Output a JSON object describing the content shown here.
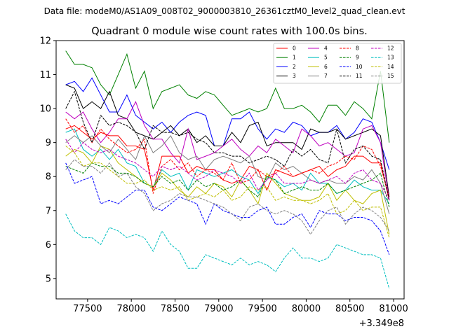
{
  "chart_data": {
    "type": "line",
    "suptitle": "Data file: modeM0/AS1A09_008T02_9000003810_26361cztM0_level2_quad_clean.evt",
    "title": "Quadrant 0 module wise count rates with 100.0s bins.",
    "xlabel": "",
    "ylabel": "",
    "x_offset_label": "+3.349e8",
    "xlim": [
      77140,
      81120
    ],
    "ylim": [
      4.4,
      12.0
    ],
    "xticks": [
      77500,
      78000,
      78500,
      79000,
      79500,
      80000,
      80500,
      81000
    ],
    "yticks": [
      5,
      6,
      7,
      8,
      9,
      10,
      11,
      12
    ],
    "x": [
      77250,
      77350,
      77450,
      77550,
      77650,
      77750,
      77850,
      77950,
      78050,
      78150,
      78250,
      78350,
      78450,
      78550,
      78650,
      78750,
      78850,
      78950,
      79050,
      79150,
      79250,
      79350,
      79450,
      79550,
      79650,
      79750,
      79850,
      79950,
      80050,
      80150,
      80250,
      80350,
      80450,
      80550,
      80650,
      80750,
      80850,
      80950
    ],
    "series": [
      {
        "name": "0",
        "color": "#ff0000",
        "dash": "solid",
        "values": [
          9.4,
          9.5,
          9.3,
          9.1,
          9.3,
          9.2,
          9.2,
          8.9,
          8.9,
          8.8,
          7.6,
          8.6,
          8.6,
          8.6,
          8.1,
          8.3,
          8.2,
          8.2,
          7.9,
          7.8,
          7.9,
          8.3,
          8.2,
          7.6,
          8.2,
          8.1,
          8.0,
          8.1,
          8.2,
          8.3,
          8.0,
          8.2,
          8.3,
          8.6,
          8.6,
          8.4,
          8.4,
          7.3
        ]
      },
      {
        "name": "1",
        "color": "#008000",
        "dash": "solid",
        "values": [
          11.7,
          11.3,
          11.3,
          11.2,
          10.7,
          10.4,
          11.0,
          11.6,
          10.6,
          11.1,
          10.0,
          10.5,
          10.6,
          10.7,
          10.4,
          10.3,
          10.5,
          10.4,
          10.1,
          9.8,
          9.9,
          10.0,
          9.9,
          10.0,
          10.6,
          10.0,
          10.0,
          10.1,
          9.9,
          9.6,
          10.1,
          10.1,
          9.8,
          10.2,
          10.0,
          9.7,
          11.1,
          9.0
        ]
      },
      {
        "name": "2",
        "color": "#0000ff",
        "dash": "solid",
        "values": [
          10.7,
          10.8,
          10.5,
          10.9,
          10.4,
          9.9,
          9.9,
          10.4,
          9.8,
          9.6,
          9.4,
          9.6,
          9.3,
          9.6,
          9.8,
          9.9,
          9.8,
          8.9,
          8.9,
          9.7,
          9.7,
          9.9,
          9.4,
          9.1,
          9.4,
          9.3,
          9.6,
          9.5,
          9.2,
          9.3,
          9.3,
          9.5,
          9.1,
          9.3,
          9.7,
          9.6,
          9.0,
          8.2
        ]
      },
      {
        "name": "3",
        "color": "#000000",
        "dash": "solid",
        "values": [
          10.7,
          10.6,
          10.0,
          10.2,
          10.0,
          10.5,
          9.8,
          9.7,
          9.3,
          9.2,
          9.1,
          9.3,
          9.5,
          9.2,
          9.4,
          9.0,
          9.2,
          8.9,
          8.9,
          9.3,
          9.0,
          9.5,
          9.6,
          8.9,
          9.0,
          9.0,
          9.0,
          8.8,
          9.4,
          9.3,
          9.3,
          9.4,
          9.1,
          9.2,
          9.3,
          9.4,
          9.2,
          7.4
        ]
      },
      {
        "name": "4",
        "color": "#bf00bf",
        "dash": "solid",
        "values": [
          9.9,
          9.7,
          9.9,
          9.4,
          9.0,
          9.3,
          9.7,
          9.7,
          10.2,
          9.5,
          9.1,
          9.1,
          8.7,
          8.4,
          9.4,
          8.5,
          8.6,
          8.7,
          8.9,
          9.1,
          8.8,
          8.6,
          8.9,
          8.7,
          9.1,
          8.9,
          8.7,
          9.4,
          9.2,
          8.9,
          9.0,
          8.8,
          8.6,
          8.7,
          9.4,
          9.5,
          9.0,
          7.3
        ]
      },
      {
        "name": "5",
        "color": "#00bfbf",
        "dash": "solid",
        "values": [
          9.3,
          9.4,
          8.8,
          8.6,
          8.8,
          8.5,
          8.8,
          8.4,
          8.3,
          7.8,
          7.7,
          8.2,
          8.0,
          8.1,
          7.6,
          8.2,
          8.1,
          8.0,
          8.1,
          8.2,
          8.0,
          7.9,
          7.5,
          8.0,
          7.9,
          7.7,
          7.8,
          7.6,
          8.1,
          7.8,
          7.8,
          7.5,
          7.6,
          7.9,
          7.7,
          7.6,
          7.6,
          7.2
        ]
      },
      {
        "name": "6",
        "color": "#bfbf00",
        "dash": "solid",
        "values": [
          8.6,
          8.8,
          8.7,
          8.4,
          8.9,
          8.8,
          8.4,
          8.2,
          8.0,
          7.8,
          7.7,
          8.1,
          7.9,
          7.6,
          7.4,
          7.7,
          7.5,
          7.8,
          7.7,
          7.4,
          7.9,
          7.6,
          7.2,
          8.1,
          7.8,
          7.5,
          7.4,
          7.3,
          7.3,
          7.4,
          7.8,
          7.3,
          7.6,
          7.3,
          7.2,
          7.5,
          7.6,
          6.3
        ]
      },
      {
        "name": "7",
        "color": "#808080",
        "dash": "solid",
        "values": [
          9.0,
          9.2,
          9.0,
          9.2,
          8.9,
          8.7,
          9.1,
          8.8,
          8.5,
          9.2,
          8.7,
          8.9,
          9.2,
          8.7,
          8.5,
          8.6,
          8.2,
          8.5,
          8.6,
          8.5,
          8.4,
          8.6,
          8.0,
          7.9,
          8.4,
          8.2,
          8.3,
          8.1,
          7.9,
          7.8,
          7.9,
          7.8,
          7.8,
          8.0,
          7.9,
          8.2,
          7.8,
          6.9
        ]
      },
      {
        "name": "8",
        "color": "#ff0000",
        "dash": "dashed",
        "values": [
          9.7,
          9.3,
          9.5,
          9.0,
          9.4,
          9.1,
          8.9,
          8.7,
          8.8,
          9.1,
          7.5,
          8.3,
          8.5,
          8.2,
          8.4,
          8.0,
          8.2,
          8.1,
          7.9,
          8.4,
          7.8,
          7.9,
          8.2,
          8.0,
          8.1,
          8.3,
          8.0,
          8.1,
          8.2,
          8.1,
          8.3,
          8.4,
          8.6,
          8.5,
          8.9,
          8.8,
          8.3,
          7.4
        ]
      },
      {
        "name": "9",
        "color": "#008000",
        "dash": "dashed",
        "values": [
          8.3,
          8.2,
          8.1,
          8.4,
          8.3,
          8.3,
          8.1,
          8.1,
          8.0,
          7.8,
          7.7,
          8.0,
          7.8,
          7.9,
          7.6,
          7.9,
          7.7,
          7.8,
          7.6,
          7.7,
          7.9,
          7.6,
          7.4,
          8.0,
          7.9,
          7.5,
          7.6,
          7.7,
          7.6,
          7.6,
          7.8,
          7.5,
          7.6,
          7.7,
          7.8,
          7.9,
          8.1,
          7.1
        ]
      },
      {
        "name": "10",
        "color": "#0000ff",
        "dash": "dashed",
        "values": [
          8.4,
          7.8,
          7.9,
          8.0,
          7.2,
          7.3,
          7.2,
          7.4,
          7.6,
          7.6,
          7.1,
          7.0,
          7.2,
          7.4,
          7.3,
          7.2,
          6.6,
          7.2,
          7.0,
          6.9,
          6.8,
          6.8,
          7.0,
          7.1,
          6.6,
          6.6,
          6.8,
          6.9,
          6.5,
          7.0,
          6.9,
          6.9,
          6.7,
          6.8,
          6.8,
          6.7,
          6.4,
          5.7
        ]
      },
      {
        "name": "11",
        "color": "#000000",
        "dash": "dashed",
        "values": [
          10.0,
          10.5,
          9.6,
          9.0,
          9.8,
          9.5,
          9.6,
          9.5,
          9.3,
          8.8,
          9.5,
          9.3,
          9.3,
          9.2,
          9.3,
          9.1,
          9.0,
          8.7,
          8.7,
          8.6,
          8.6,
          8.4,
          8.5,
          8.6,
          8.5,
          8.3,
          8.8,
          8.6,
          8.8,
          8.5,
          8.4,
          9.4,
          8.4,
          8.8,
          8.9,
          8.6,
          8.5,
          7.3
        ]
      },
      {
        "name": "12",
        "color": "#bf00bf",
        "dash": "dashed",
        "values": [
          9.1,
          8.7,
          9.0,
          8.8,
          8.7,
          8.8,
          8.6,
          8.5,
          8.4,
          8.2,
          8.0,
          8.3,
          8.2,
          8.3,
          8.1,
          7.9,
          8.0,
          8.2,
          8.1,
          8.0,
          7.8,
          8.1,
          7.6,
          7.9,
          8.1,
          7.8,
          7.8,
          7.8,
          7.9,
          7.8,
          7.9,
          8.0,
          7.8,
          8.1,
          8.2,
          7.9,
          7.8,
          7.3
        ]
      },
      {
        "name": "13",
        "color": "#00bfbf",
        "dash": "dashed",
        "values": [
          6.9,
          6.4,
          6.2,
          6.2,
          6.0,
          6.5,
          6.4,
          6.2,
          6.3,
          6.2,
          5.8,
          6.4,
          6.0,
          5.8,
          5.3,
          5.3,
          5.7,
          5.6,
          5.5,
          5.4,
          5.6,
          5.4,
          5.5,
          5.4,
          5.2,
          5.6,
          5.9,
          5.6,
          5.6,
          5.5,
          5.6,
          6.0,
          5.9,
          5.8,
          5.7,
          5.7,
          5.6,
          4.7
        ]
      },
      {
        "name": "14",
        "color": "#bfbf00",
        "dash": "dashed",
        "values": [
          8.9,
          8.7,
          8.3,
          8.4,
          8.4,
          8.2,
          8.0,
          7.8,
          7.8,
          7.9,
          7.6,
          7.7,
          7.6,
          7.7,
          7.3,
          7.4,
          7.5,
          7.4,
          7.6,
          7.3,
          7.4,
          7.7,
          7.6,
          7.7,
          7.3,
          7.4,
          7.3,
          7.3,
          7.2,
          7.3,
          7.5,
          6.9,
          7.0,
          7.3,
          7.0,
          7.1,
          7.1,
          6.2
        ]
      },
      {
        "name": "15",
        "color": "#808080",
        "dash": "dashed",
        "values": [
          8.2,
          8.5,
          8.3,
          8.3,
          8.1,
          8.4,
          8.0,
          8.1,
          7.7,
          7.5,
          7.0,
          7.2,
          7.3,
          7.5,
          7.4,
          7.4,
          7.3,
          7.2,
          7.1,
          6.9,
          6.7,
          7.1,
          7.2,
          7.0,
          6.9,
          7.0,
          6.9,
          6.7,
          6.3,
          6.7,
          7.0,
          7.1,
          6.6,
          6.9,
          7.1,
          7.0,
          6.8,
          6.4
        ]
      }
    ],
    "legend_position": "top-right",
    "legend_columns": 4,
    "grid": false
  }
}
